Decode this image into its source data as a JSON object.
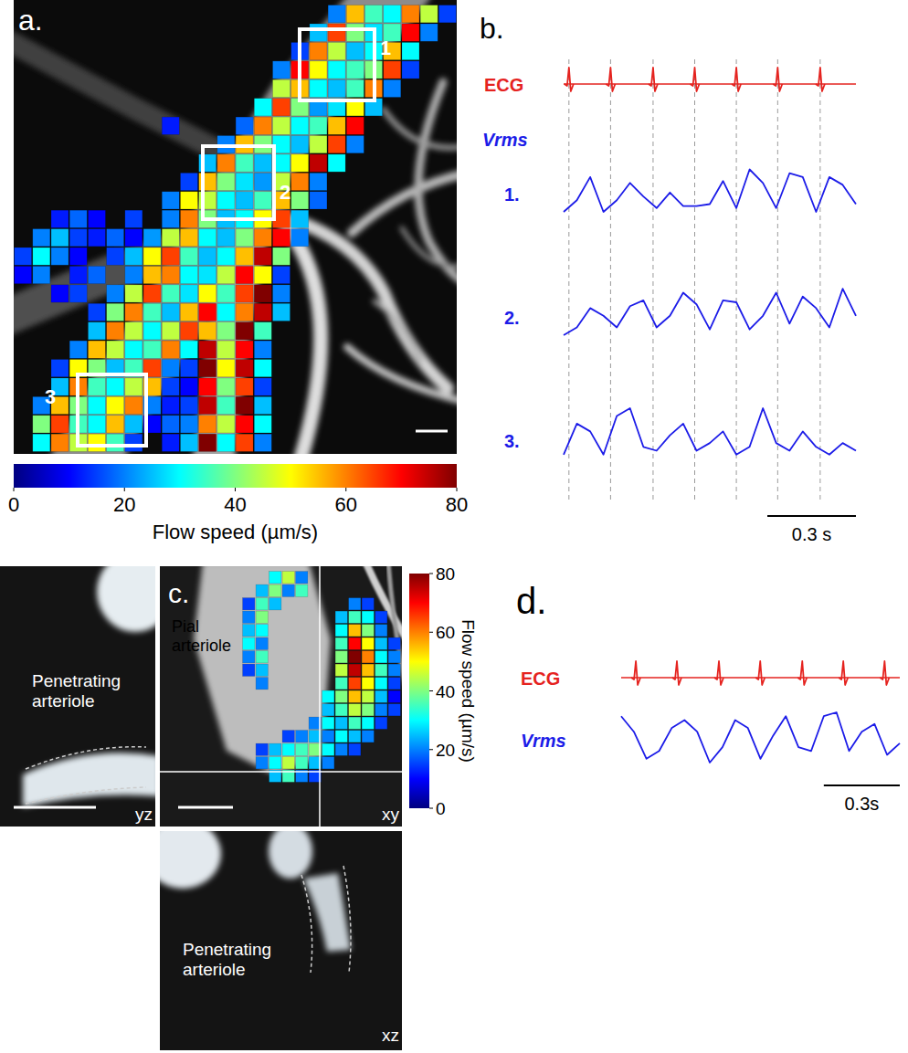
{
  "chart_data": [
    {
      "type": "heatmap",
      "panel": "a.",
      "regions": [
        "1",
        "2",
        "3"
      ],
      "color_range": [
        0,
        80
      ],
      "color_ticks": [
        0,
        20,
        40,
        60,
        80
      ],
      "colorbar_label": "Flow speed (µm/s)",
      "cells": [
        [
          null,
          null,
          null,
          null,
          null,
          null,
          null,
          null,
          null,
          null,
          null,
          null,
          null,
          null,
          null,
          null,
          null,
          20,
          55,
          35,
          30,
          60,
          45,
          15
        ],
        [
          null,
          null,
          null,
          null,
          null,
          null,
          null,
          null,
          null,
          null,
          null,
          null,
          null,
          null,
          null,
          null,
          25,
          65,
          40,
          28,
          35,
          70,
          20,
          null
        ],
        [
          null,
          null,
          null,
          null,
          null,
          null,
          null,
          null,
          null,
          null,
          null,
          null,
          null,
          null,
          null,
          15,
          60,
          45,
          25,
          30,
          55,
          30,
          null,
          null
        ],
        [
          null,
          null,
          null,
          null,
          null,
          null,
          null,
          null,
          null,
          null,
          null,
          null,
          null,
          null,
          20,
          70,
          50,
          30,
          35,
          40,
          65,
          15,
          null,
          null
        ],
        [
          null,
          null,
          null,
          null,
          null,
          null,
          null,
          null,
          null,
          null,
          null,
          null,
          null,
          null,
          45,
          55,
          30,
          25,
          35,
          60,
          20,
          null,
          null,
          null
        ],
        [
          null,
          null,
          null,
          null,
          null,
          null,
          null,
          null,
          null,
          null,
          null,
          null,
          null,
          30,
          65,
          40,
          22,
          28,
          50,
          25,
          null,
          null,
          null,
          null
        ],
        [
          null,
          null,
          null,
          null,
          null,
          null,
          null,
          null,
          12,
          null,
          null,
          null,
          18,
          60,
          45,
          30,
          35,
          55,
          70,
          null,
          null,
          null,
          null,
          null
        ],
        [
          null,
          null,
          null,
          null,
          null,
          null,
          null,
          null,
          null,
          null,
          null,
          20,
          55,
          40,
          30,
          25,
          45,
          65,
          20,
          null,
          null,
          null,
          null,
          null
        ],
        [
          null,
          null,
          null,
          null,
          null,
          null,
          null,
          null,
          null,
          null,
          25,
          60,
          35,
          25,
          30,
          50,
          75,
          30,
          null,
          null,
          null,
          null,
          null,
          null
        ],
        [
          null,
          null,
          null,
          null,
          null,
          null,
          null,
          null,
          null,
          15,
          55,
          40,
          28,
          22,
          45,
          60,
          20,
          null,
          null,
          null,
          null,
          null,
          null,
          null
        ],
        [
          null,
          null,
          null,
          null,
          null,
          null,
          null,
          null,
          20,
          50,
          45,
          30,
          25,
          35,
          55,
          40,
          18,
          null,
          null,
          null,
          null,
          null,
          null,
          null
        ],
        [
          null,
          null,
          12,
          18,
          10,
          null,
          15,
          null,
          20,
          60,
          40,
          25,
          30,
          50,
          65,
          25,
          null,
          null,
          null,
          null,
          null,
          null,
          null,
          null
        ],
        [
          null,
          20,
          25,
          15,
          12,
          18,
          10,
          22,
          45,
          55,
          30,
          25,
          40,
          60,
          70,
          20,
          null,
          null,
          null,
          null,
          null,
          null,
          null,
          null
        ],
        [
          15,
          30,
          20,
          10,
          null,
          15,
          25,
          50,
          65,
          35,
          25,
          30,
          55,
          75,
          40,
          null,
          null,
          null,
          null,
          null,
          null,
          null,
          null,
          null
        ],
        [
          10,
          20,
          null,
          12,
          18,
          null,
          20,
          55,
          60,
          30,
          28,
          45,
          70,
          50,
          15,
          null,
          null,
          null,
          null,
          null,
          null,
          null,
          null,
          null
        ],
        [
          null,
          null,
          10,
          15,
          null,
          20,
          45,
          65,
          35,
          28,
          50,
          35,
          65,
          80,
          20,
          null,
          null,
          null,
          null,
          null,
          null,
          null,
          null,
          null
        ],
        [
          null,
          null,
          null,
          null,
          15,
          40,
          60,
          35,
          25,
          55,
          70,
          30,
          60,
          75,
          25,
          null,
          null,
          null,
          null,
          null,
          null,
          null,
          null,
          null
        ],
        [
          null,
          null,
          null,
          null,
          25,
          60,
          45,
          30,
          45,
          65,
          55,
          40,
          80,
          35,
          null,
          null,
          null,
          null,
          null,
          null,
          null,
          null,
          null,
          null
        ],
        [
          null,
          null,
          null,
          20,
          55,
          45,
          30,
          35,
          60,
          30,
          75,
          45,
          70,
          20,
          null,
          null,
          null,
          null,
          null,
          null,
          null,
          null,
          null,
          null
        ],
        [
          null,
          null,
          15,
          50,
          40,
          25,
          35,
          65,
          20,
          15,
          80,
          50,
          75,
          30,
          null,
          null,
          null,
          null,
          null,
          null,
          null,
          null,
          null,
          null
        ],
        [
          null,
          null,
          25,
          60,
          35,
          30,
          45,
          55,
          15,
          10,
          70,
          40,
          65,
          15,
          null,
          null,
          null,
          null,
          null,
          null,
          null,
          null,
          null,
          null
        ],
        [
          null,
          20,
          55,
          40,
          30,
          50,
          60,
          20,
          12,
          15,
          75,
          35,
          80,
          25,
          null,
          null,
          null,
          null,
          null,
          null,
          null,
          null,
          null,
          null
        ],
        [
          null,
          40,
          65,
          35,
          30,
          55,
          25,
          10,
          18,
          20,
          60,
          45,
          70,
          30,
          null,
          null,
          null,
          null,
          null,
          null,
          null,
          null,
          null,
          null
        ],
        [
          null,
          30,
          60,
          45,
          50,
          35,
          15,
          null,
          12,
          25,
          80,
          30,
          65,
          20,
          null,
          null,
          null,
          null,
          null,
          null,
          null,
          null,
          null,
          null
        ]
      ]
    },
    {
      "type": "line",
      "panel": "b.",
      "ecg": {
        "name": "ECG",
        "color": "#e5231f",
        "beats": [
          0.018,
          0.159,
          0.303,
          0.444,
          0.585,
          0.725,
          0.869
        ]
      },
      "vrms_label": "Vrms",
      "x": [
        0,
        0.045,
        0.09,
        0.135,
        0.18,
        0.225,
        0.27,
        0.315,
        0.36,
        0.405,
        0.45,
        0.495,
        0.54,
        0.585,
        0.63,
        0.675,
        0.72,
        0.765,
        0.81,
        0.855,
        0.9,
        0.945,
        0.99
      ],
      "series": [
        {
          "name": "1.",
          "color": "#1c1ce8",
          "values": [
            30,
            36,
            48,
            30,
            36,
            45,
            38,
            32,
            40,
            33,
            33,
            34,
            46,
            32,
            52,
            45,
            32,
            50,
            48,
            30,
            48,
            44,
            34
          ]
        },
        {
          "name": "2.",
          "color": "#1c1ce8",
          "values": [
            30,
            34,
            44,
            40,
            34,
            45,
            48,
            34,
            40,
            52,
            46,
            33,
            48,
            47,
            33,
            40,
            52,
            36,
            50,
            44,
            34,
            54,
            40
          ]
        },
        {
          "name": "3.",
          "color": "#1c1ce8",
          "values": [
            32,
            48,
            44,
            32,
            52,
            56,
            36,
            34,
            42,
            48,
            34,
            38,
            44,
            32,
            36,
            56,
            38,
            34,
            44,
            36,
            32,
            38,
            34
          ]
        }
      ],
      "scale_bar": {
        "value": 0.3,
        "label": "0.3 s"
      }
    },
    {
      "type": "heatmap",
      "panel": "c.",
      "views": [
        "yz",
        "xy",
        "xz"
      ],
      "labels": {
        "yz": "Penetrating arteriole",
        "xy": "Pial arteriole",
        "xz": "Penetrating arteriole"
      },
      "color_range": [
        0,
        80
      ],
      "color_ticks": [
        0,
        20,
        40,
        60,
        80
      ],
      "colorbar_label": "Flow speed (µm/s)",
      "cells": [
        [
          null,
          null,
          30,
          45,
          20,
          null,
          null,
          null,
          null,
          null,
          null,
          null
        ],
        [
          null,
          25,
          40,
          20,
          35,
          null,
          null,
          null,
          null,
          null,
          null,
          null
        ],
        [
          15,
          35,
          25,
          null,
          null,
          null,
          null,
          null,
          20,
          15,
          null,
          null
        ],
        [
          20,
          40,
          null,
          null,
          null,
          null,
          null,
          25,
          35,
          30,
          15,
          null
        ],
        [
          25,
          30,
          null,
          null,
          null,
          null,
          null,
          30,
          55,
          40,
          20,
          null
        ],
        [
          30,
          20,
          null,
          null,
          null,
          null,
          null,
          35,
          70,
          50,
          25,
          15
        ],
        [
          20,
          35,
          null,
          null,
          null,
          null,
          null,
          40,
          80,
          60,
          30,
          20
        ],
        [
          15,
          25,
          null,
          null,
          null,
          null,
          null,
          45,
          75,
          55,
          35,
          20
        ],
        [
          null,
          20,
          null,
          null,
          null,
          null,
          null,
          35,
          65,
          50,
          30,
          15
        ],
        [
          null,
          null,
          null,
          null,
          null,
          null,
          30,
          40,
          55,
          45,
          25,
          10
        ],
        [
          null,
          null,
          null,
          null,
          null,
          null,
          25,
          35,
          45,
          40,
          20,
          15
        ],
        [
          null,
          null,
          null,
          null,
          null,
          20,
          30,
          25,
          35,
          30,
          15,
          null
        ],
        [
          null,
          null,
          null,
          15,
          20,
          25,
          20,
          30,
          25,
          20,
          null,
          null
        ],
        [
          null,
          15,
          25,
          30,
          35,
          40,
          30,
          20,
          15,
          null,
          null,
          null
        ],
        [
          null,
          20,
          30,
          45,
          35,
          25,
          20,
          null,
          null,
          null,
          null,
          null
        ],
        [
          null,
          null,
          25,
          35,
          20,
          15,
          null,
          null,
          null,
          null,
          null,
          null
        ]
      ]
    },
    {
      "type": "line",
      "panel": "d.",
      "ecg": {
        "name": "ECG",
        "color": "#e5231f",
        "beats": [
          0.058,
          0.22,
          0.386,
          0.549,
          0.715,
          0.877,
          1.04
        ]
      },
      "vrms_label": "Vrms",
      "x": [
        0,
        0.05,
        0.1,
        0.15,
        0.2,
        0.25,
        0.3,
        0.35,
        0.4,
        0.45,
        0.5,
        0.55,
        0.6,
        0.65,
        0.7,
        0.75,
        0.8,
        0.85,
        0.9,
        0.95,
        1.0,
        1.05,
        1.1
      ],
      "series": [
        {
          "name": "Vrms",
          "color": "#1c1ce8",
          "values": [
            52,
            44,
            30,
            34,
            46,
            50,
            44,
            28,
            36,
            50,
            46,
            30,
            42,
            52,
            36,
            34,
            52,
            54,
            34,
            44,
            48,
            32,
            38
          ]
        }
      ],
      "scale_bar": {
        "value": 0.3,
        "label": "0.3s"
      }
    }
  ]
}
